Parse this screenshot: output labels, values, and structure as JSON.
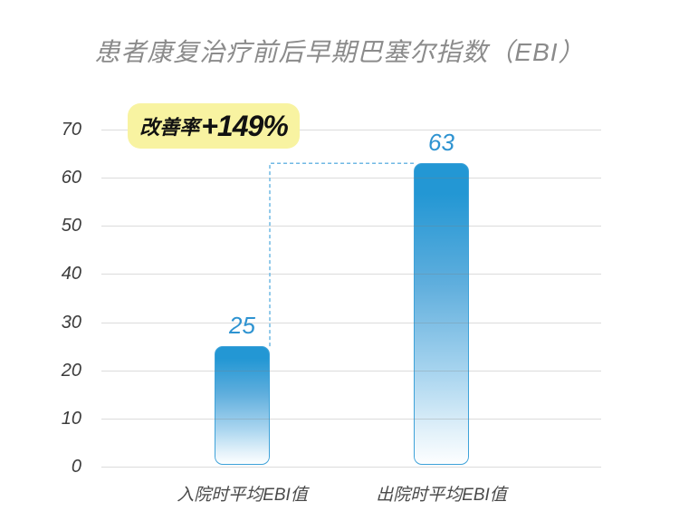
{
  "badge": {
    "prefix": "改善率",
    "value": "+149%"
  },
  "chart_data": {
    "type": "bar",
    "title": "患者康复治疗前后早期巴塞尔指数（EBI）",
    "categories": [
      "入院时平均EBI值",
      "出院时平均EBI值"
    ],
    "values": [
      25,
      63
    ],
    "yticks": [
      0,
      10,
      20,
      30,
      40,
      50,
      60,
      70
    ],
    "ylim": [
      0,
      70
    ],
    "grid": true,
    "legend_position": "none",
    "annotation": "改善率+149%",
    "title_color": "#8B8B8B",
    "axis_label_color": "#3C3C3C",
    "category_label_color": "#4A4A4A",
    "gridline_color": "#DCDCDC",
    "bar_gradient_top": "#2397D4",
    "bar_gradient_bottom": "#FDFEFF",
    "bar_border_color": "#3EA2D9",
    "value_label_color": "#2E93D1",
    "connector_color": "#6FB8E4",
    "badge_background": "#F8F3A1",
    "badge_text_color": "#111111"
  }
}
